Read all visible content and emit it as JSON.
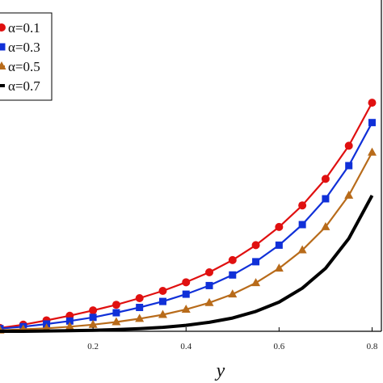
{
  "chart_data": {
    "type": "line",
    "xlabel": "y",
    "ylabel": "",
    "title": "",
    "xlim": [
      0.0,
      0.82
    ],
    "ylim": [
      0.0,
      1.0
    ],
    "x_ticks": [
      {
        "value": 0.2,
        "label": "0.2"
      },
      {
        "value": 0.4,
        "label": "0.4"
      },
      {
        "value": 0.6,
        "label": "0.6"
      },
      {
        "value": 0.8,
        "label": "0.8"
      }
    ],
    "grid": false,
    "legend_position": "top-left",
    "series": [
      {
        "name": "α=0.1",
        "color": "#e01010",
        "marker": "circle",
        "x": [
          0.0,
          0.05,
          0.1,
          0.15,
          0.2,
          0.25,
          0.3,
          0.35,
          0.4,
          0.45,
          0.5,
          0.55,
          0.6,
          0.65,
          0.7,
          0.75,
          0.8
        ],
        "y": [
          0.01,
          0.02,
          0.033,
          0.047,
          0.063,
          0.08,
          0.1,
          0.122,
          0.148,
          0.178,
          0.215,
          0.26,
          0.315,
          0.38,
          0.46,
          0.56,
          0.69
        ]
      },
      {
        "name": "α=0.3",
        "color": "#1030d8",
        "marker": "square",
        "x": [
          0.0,
          0.05,
          0.1,
          0.15,
          0.2,
          0.25,
          0.3,
          0.35,
          0.4,
          0.45,
          0.5,
          0.55,
          0.6,
          0.65,
          0.7,
          0.75,
          0.8
        ],
        "y": [
          0.008,
          0.014,
          0.022,
          0.031,
          0.042,
          0.056,
          0.072,
          0.09,
          0.112,
          0.138,
          0.17,
          0.21,
          0.26,
          0.322,
          0.4,
          0.5,
          0.63
        ]
      },
      {
        "name": "α=0.5",
        "color": "#b86b1a",
        "marker": "triangle",
        "x": [
          0.0,
          0.05,
          0.1,
          0.15,
          0.2,
          0.25,
          0.3,
          0.35,
          0.4,
          0.45,
          0.5,
          0.55,
          0.6,
          0.65,
          0.7,
          0.75,
          0.8
        ],
        "y": [
          0.003,
          0.006,
          0.009,
          0.014,
          0.02,
          0.028,
          0.038,
          0.05,
          0.066,
          0.086,
          0.112,
          0.146,
          0.19,
          0.245,
          0.315,
          0.41,
          0.54
        ]
      },
      {
        "name": "α=0.7",
        "color": "#000000",
        "marker": "none",
        "x": [
          0.0,
          0.05,
          0.1,
          0.15,
          0.2,
          0.25,
          0.3,
          0.35,
          0.4,
          0.45,
          0.5,
          0.55,
          0.6,
          0.65,
          0.7,
          0.75,
          0.8
        ],
        "y": [
          0.0,
          0.0,
          0.001,
          0.002,
          0.003,
          0.005,
          0.008,
          0.012,
          0.018,
          0.027,
          0.04,
          0.06,
          0.088,
          0.13,
          0.19,
          0.28,
          0.41
        ]
      }
    ]
  }
}
